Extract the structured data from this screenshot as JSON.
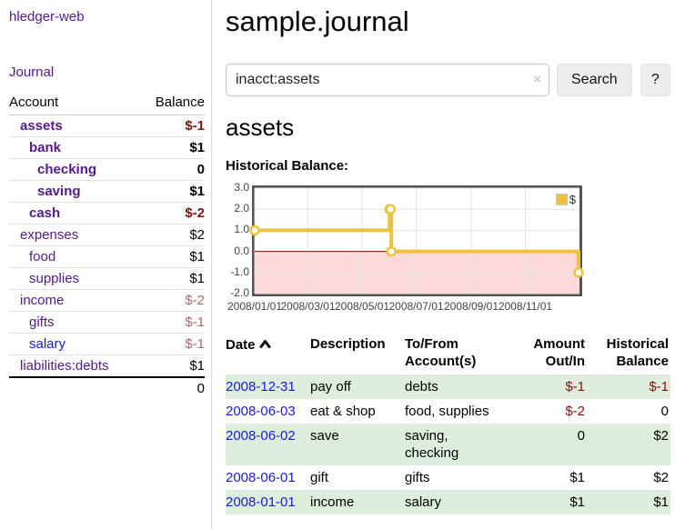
{
  "sidebar": {
    "app_title": "hledger-web",
    "nav": {
      "journal": "Journal"
    },
    "accounts_table": {
      "headers": {
        "account": "Account",
        "balance": "Balance"
      },
      "rows": [
        {
          "account": "assets",
          "balance": "$-1"
        },
        {
          "account": "bank",
          "balance": "$1"
        },
        {
          "account": "checking",
          "balance": "0"
        },
        {
          "account": "saving",
          "balance": "$1"
        },
        {
          "account": "cash",
          "balance": "$-2"
        },
        {
          "account": "expenses",
          "balance": "$2"
        },
        {
          "account": "food",
          "balance": "$1"
        },
        {
          "account": "supplies",
          "balance": "$1"
        },
        {
          "account": "income",
          "balance": "$-2"
        },
        {
          "account": "gifts",
          "balance": "$-1"
        },
        {
          "account": "salary",
          "balance": "$-1"
        },
        {
          "account": "liabilities:debts",
          "balance": "$1"
        }
      ],
      "total": "0"
    }
  },
  "main": {
    "title": "sample.journal",
    "search": {
      "value": "inacct:assets",
      "clear_icon": "×",
      "search_button": "Search",
      "help_button": "?"
    },
    "account_heading": "assets",
    "register": {
      "headers": {
        "date": "Date",
        "description": "Description",
        "accounts": "To/From Account(s)",
        "amount": "Amount Out/In",
        "balance": "Historical Balance"
      },
      "rows": [
        {
          "date": "2008-12-31",
          "description": "pay off",
          "accounts": "debts",
          "amount": "$-1",
          "balance": "$-1"
        },
        {
          "date": "2008-06-03",
          "description": "eat & shop",
          "accounts": "food, supplies",
          "amount": "$-2",
          "balance": "0"
        },
        {
          "date": "2008-06-02",
          "description": "save",
          "accounts": "saving, checking",
          "amount": "0",
          "balance": "$2"
        },
        {
          "date": "2008-06-01",
          "description": "gift",
          "accounts": "gifts",
          "amount": "$1",
          "balance": "$2"
        },
        {
          "date": "2008-01-01",
          "description": "income",
          "accounts": "salary",
          "amount": "$1",
          "balance": "$1"
        }
      ]
    }
  },
  "chart_data": {
    "type": "line",
    "title": "Historical Balance:",
    "step": true,
    "x_range": [
      "2008-01-01",
      "2009-01-01"
    ],
    "ylim": [
      -2,
      3
    ],
    "yticks": [
      3.0,
      2.0,
      1.0,
      0.0,
      -1.0,
      -2.0
    ],
    "xticks": [
      "2008/01/01",
      "2008/03/01",
      "2008/05/01",
      "2008/07/01",
      "2008/09/01",
      "2008/11/01"
    ],
    "series": [
      {
        "name": "$",
        "color": "#edc240",
        "points": [
          [
            "2008-01-01",
            1
          ],
          [
            "2008-06-01",
            2
          ],
          [
            "2008-06-02",
            2
          ],
          [
            "2008-06-03",
            0
          ],
          [
            "2008-12-31",
            -1
          ]
        ]
      }
    ],
    "legend": {
      "label": "$",
      "position": "top-right"
    },
    "grid": true,
    "gridline_color": "#e6e6e6",
    "negative_fill": "#fcdada",
    "zero_line_color": "#8b0000"
  },
  "colors": {
    "link_purple": "#551a8b",
    "link_blue": "#1a1ad6",
    "negative_strong": "#8b0f0f",
    "negative_muted": "#b9646e",
    "row_green": "#ddeedd",
    "series_yellow": "#edc240"
  }
}
